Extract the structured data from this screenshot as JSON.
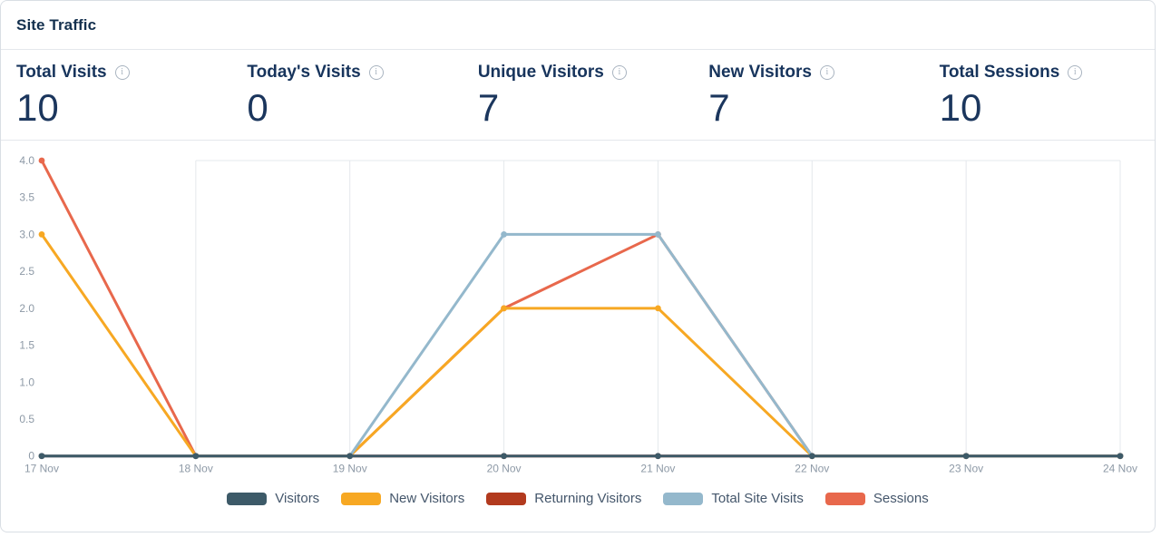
{
  "card": {
    "title": "Site Traffic"
  },
  "icons": {
    "info": "i"
  },
  "stats": [
    {
      "label": "Total Visits",
      "value": "10",
      "icon": "info-icon"
    },
    {
      "label": "Today's Visits",
      "value": "0",
      "icon": "info-icon"
    },
    {
      "label": "Unique Visitors",
      "value": "7",
      "icon": "info-icon"
    },
    {
      "label": "New Visitors",
      "value": "7",
      "icon": "info-icon"
    },
    {
      "label": "Total Sessions",
      "value": "10",
      "icon": "info-icon"
    }
  ],
  "chart_data": {
    "type": "line",
    "title": "Site Traffic",
    "x": [
      "17 Nov",
      "18 Nov",
      "19 Nov",
      "20 Nov",
      "21 Nov",
      "22 Nov",
      "23 Nov",
      "24 Nov"
    ],
    "xlabel": "",
    "ylabel": "",
    "ylim": [
      0,
      4
    ],
    "yticks": [
      0,
      0.5,
      1,
      1.5,
      2,
      2.5,
      3,
      3.5,
      4
    ],
    "grid": "vertical",
    "legend_position": "bottom",
    "series": [
      {
        "name": "Visitors",
        "color": "#3d5a68",
        "values": [
          0,
          0,
          0,
          0,
          0,
          0,
          0,
          0
        ]
      },
      {
        "name": "New Visitors",
        "color": "#f7a823",
        "values": [
          3,
          0,
          0,
          2,
          2,
          0,
          0,
          0
        ]
      },
      {
        "name": "Returning Visitors",
        "color": "#b23a1e",
        "values": [
          0,
          0,
          0,
          0,
          0,
          0,
          0,
          0
        ]
      },
      {
        "name": "Total Site Visits",
        "color": "#94b8cc",
        "values": [
          0,
          0,
          0,
          3,
          3,
          0,
          0,
          0
        ]
      },
      {
        "name": "Sessions",
        "color": "#e8684c",
        "values": [
          4,
          0,
          0,
          2,
          3,
          0,
          0,
          0
        ]
      }
    ],
    "draw_order": [
      2,
      4,
      1,
      3,
      0
    ]
  }
}
